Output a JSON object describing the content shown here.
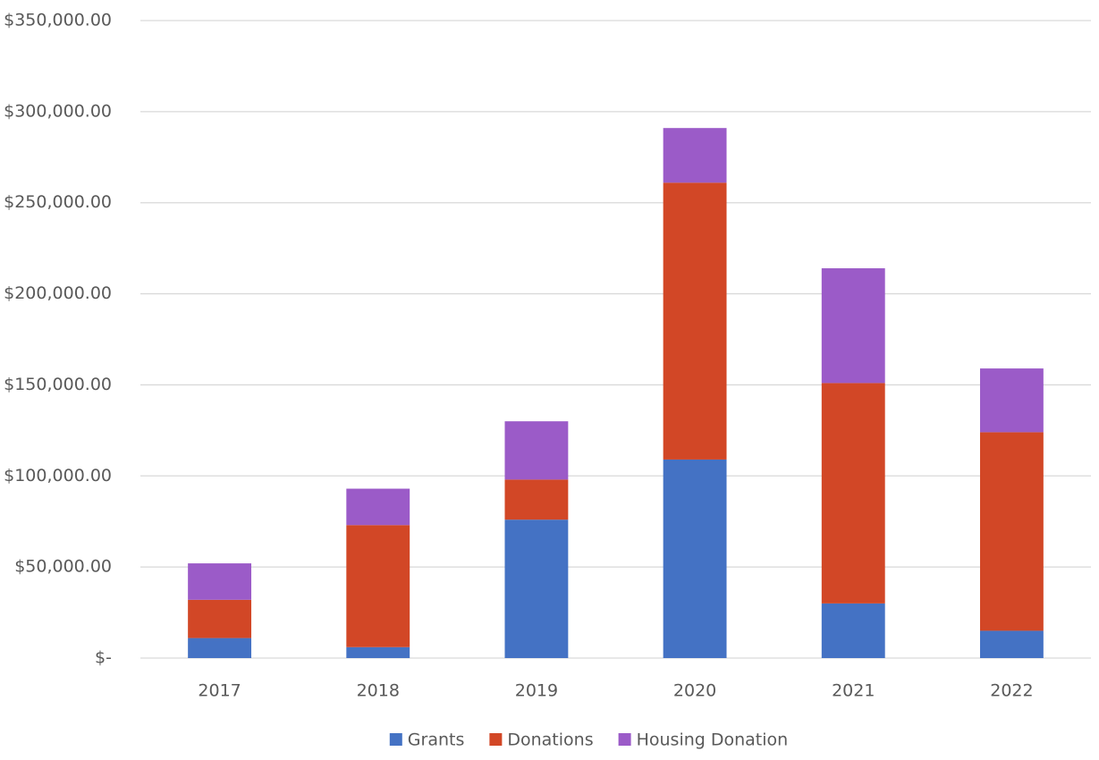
{
  "chart_data": {
    "type": "stacked_bar",
    "categories": [
      "2017",
      "2018",
      "2019",
      "2020",
      "2021",
      "2022"
    ],
    "series": [
      {
        "name": "Grants",
        "color": "#4472c4",
        "values": [
          11000,
          6000,
          76000,
          109000,
          30000,
          15000
        ]
      },
      {
        "name": "Donations",
        "color": "#d24726",
        "values": [
          21000,
          67000,
          22000,
          152000,
          121000,
          109000
        ]
      },
      {
        "name": "Housing Donation",
        "color": "#9b5bc8",
        "values": [
          20000,
          20000,
          32000,
          30000,
          63000,
          35000
        ]
      }
    ],
    "ylim": [
      0,
      350000
    ],
    "yticks": [
      {
        "value": 0,
        "label": "$-"
      },
      {
        "value": 50000,
        "label": "$50,000.00"
      },
      {
        "value": 100000,
        "label": "$100,000.00"
      },
      {
        "value": 150000,
        "label": "$150,000.00"
      },
      {
        "value": 200000,
        "label": "$200,000.00"
      },
      {
        "value": 250000,
        "label": "$250,000.00"
      },
      {
        "value": 300000,
        "label": "$300,000.00"
      },
      {
        "value": 350000,
        "label": "$350,000.00"
      }
    ],
    "grid": true,
    "legend": "bottom"
  }
}
